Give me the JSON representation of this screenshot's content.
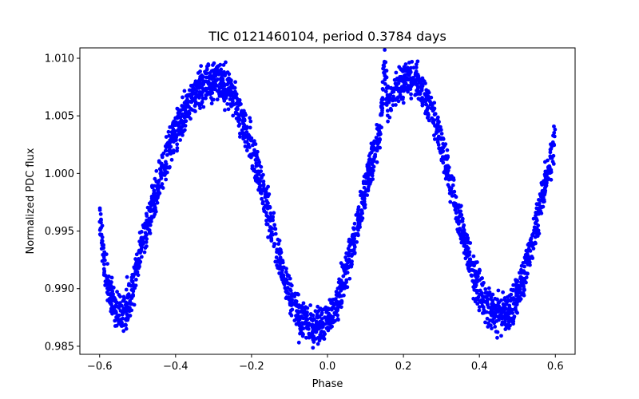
{
  "chart_data": {
    "type": "scatter",
    "title": "TIC 0121460104, period 0.3784 days",
    "xlabel": "Phase",
    "ylabel": "Normalized PDC flux",
    "xlim": [
      -0.652,
      0.652
    ],
    "ylim": [
      0.9843,
      1.0109
    ],
    "grid": false,
    "marker_color": "#0000ff",
    "x_ticks": [
      {
        "value": -0.6,
        "label": "−0.6"
      },
      {
        "value": -0.4,
        "label": "−0.4"
      },
      {
        "value": -0.2,
        "label": "−0.2"
      },
      {
        "value": 0.0,
        "label": "0.0"
      },
      {
        "value": 0.2,
        "label": "0.2"
      },
      {
        "value": 0.4,
        "label": "0.4"
      },
      {
        "value": 0.6,
        "label": "0.6"
      }
    ],
    "y_ticks": [
      {
        "value": 0.985,
        "label": "0.985"
      },
      {
        "value": 0.99,
        "label": "0.990"
      },
      {
        "value": 0.995,
        "label": "0.995"
      },
      {
        "value": 1.0,
        "label": "1.000"
      },
      {
        "value": 1.005,
        "label": "1.005"
      },
      {
        "value": 1.01,
        "label": "1.010"
      }
    ],
    "series": [
      {
        "name": "PDC flux",
        "points": [
          [
            -0.6,
            0.996
          ],
          [
            -0.59,
            0.993
          ],
          [
            -0.58,
            0.991
          ],
          [
            -0.57,
            0.9895
          ],
          [
            -0.56,
            0.9885
          ],
          [
            -0.55,
            0.9877
          ],
          [
            -0.54,
            0.9876
          ],
          [
            -0.53,
            0.9881
          ],
          [
            -0.52,
            0.9892
          ],
          [
            -0.51,
            0.9905
          ],
          [
            -0.5,
            0.992
          ],
          [
            -0.48,
            0.9948
          ],
          [
            -0.46,
            0.9973
          ],
          [
            -0.44,
            0.9996
          ],
          [
            -0.42,
            1.0017
          ],
          [
            -0.4,
            1.0036
          ],
          [
            -0.38,
            1.0052
          ],
          [
            -0.36,
            1.0064
          ],
          [
            -0.34,
            1.0073
          ],
          [
            -0.32,
            1.0078
          ],
          [
            -0.3,
            1.008
          ],
          [
            -0.28,
            1.0078
          ],
          [
            -0.26,
            1.0072
          ],
          [
            -0.24,
            1.006
          ],
          [
            -0.22,
            1.0043
          ],
          [
            -0.2,
            1.0022
          ],
          [
            -0.18,
            0.9998
          ],
          [
            -0.16,
            0.9972
          ],
          [
            -0.14,
            0.9944
          ],
          [
            -0.12,
            0.9918
          ],
          [
            -0.1,
            0.9896
          ],
          [
            -0.08,
            0.9881
          ],
          [
            -0.06,
            0.9872
          ],
          [
            -0.04,
            0.9868
          ],
          [
            -0.02,
            0.9868
          ],
          [
            0.0,
            0.9872
          ],
          [
            0.02,
            0.9884
          ],
          [
            0.04,
            0.9903
          ],
          [
            0.06,
            0.9928
          ],
          [
            0.08,
            0.9956
          ],
          [
            0.1,
            0.9986
          ],
          [
            0.12,
            1.0014
          ],
          [
            0.14,
            1.004
          ],
          [
            0.16,
            1.006
          ],
          [
            0.18,
            1.0073
          ],
          [
            0.2,
            1.008
          ],
          [
            0.22,
            1.0082
          ],
          [
            0.24,
            1.0078
          ],
          [
            0.26,
            1.0066
          ],
          [
            0.28,
            1.0047
          ],
          [
            0.3,
            1.0024
          ],
          [
            0.32,
            0.9998
          ],
          [
            0.34,
            0.997
          ],
          [
            0.36,
            0.9942
          ],
          [
            0.38,
            0.9917
          ],
          [
            0.4,
            0.9897
          ],
          [
            0.42,
            0.9884
          ],
          [
            0.44,
            0.9877
          ],
          [
            0.46,
            0.9876
          ],
          [
            0.48,
            0.988
          ],
          [
            0.5,
            0.9893
          ],
          [
            0.52,
            0.9915
          ],
          [
            0.54,
            0.9942
          ],
          [
            0.56,
            0.9971
          ],
          [
            0.58,
            1.0002
          ],
          [
            0.6,
            1.003
          ],
          [
            0.15,
            1.0097
          ]
        ]
      }
    ]
  }
}
